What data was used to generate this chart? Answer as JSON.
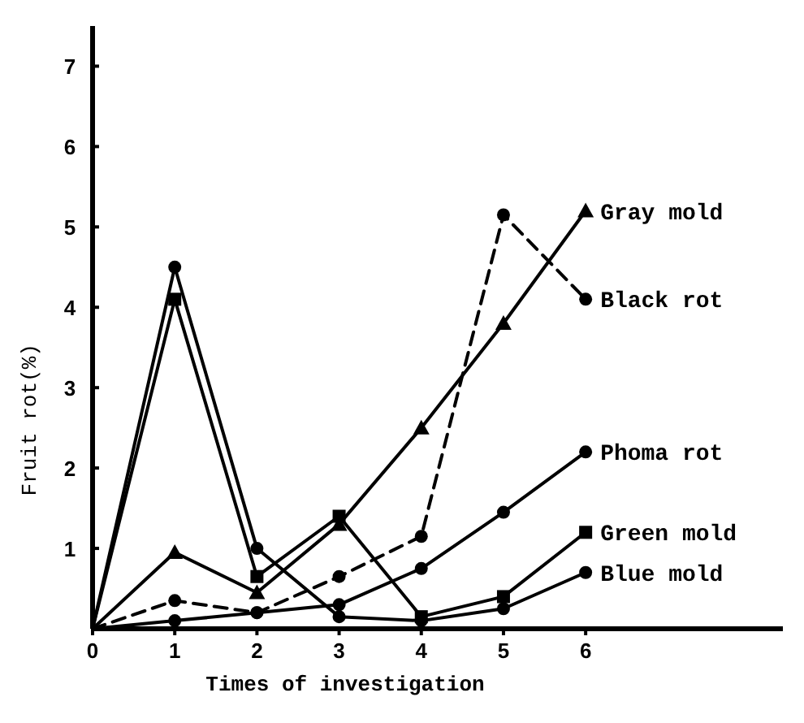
{
  "chart_data": {
    "type": "line",
    "xlabel": "Times of investigation",
    "ylabel": "Fruit rot(%)",
    "x": [
      0,
      1,
      2,
      3,
      4,
      5,
      6
    ],
    "xlim": [
      0,
      8.4
    ],
    "ylim": [
      0,
      7.5
    ],
    "xticks": [
      0,
      1,
      2,
      3,
      4,
      5,
      6
    ],
    "yticks": [
      {
        "value": 0,
        "label": null
      },
      1,
      2,
      3,
      4,
      5,
      6,
      7
    ],
    "grid": false,
    "series": [
      {
        "name": "Gray mold",
        "color": "#000000",
        "marker": "triangle",
        "line_style": "solid",
        "values": [
          0,
          0.95,
          0.45,
          1.3,
          2.5,
          3.8,
          5.2
        ]
      },
      {
        "name": "Black rot",
        "color": "#000000",
        "marker": "circle",
        "line_style": "dashed",
        "values": [
          0,
          0.35,
          0.2,
          0.65,
          1.15,
          5.15,
          4.1
        ]
      },
      {
        "name": "Phoma rot",
        "color": "#000000",
        "marker": "circle",
        "line_style": "solid",
        "values": [
          0,
          0.1,
          0.2,
          0.3,
          0.75,
          1.45,
          2.2
        ]
      },
      {
        "name": "Green mold",
        "color": "#000000",
        "marker": "square",
        "line_style": "solid",
        "values": [
          0,
          4.1,
          0.65,
          1.4,
          0.15,
          0.4,
          1.2
        ]
      },
      {
        "name": "Blue mold",
        "color": "#000000",
        "marker": "circle",
        "line_style": "solid",
        "values": [
          0,
          4.5,
          1.0,
          0.15,
          0.1,
          0.25,
          0.7
        ]
      }
    ]
  }
}
